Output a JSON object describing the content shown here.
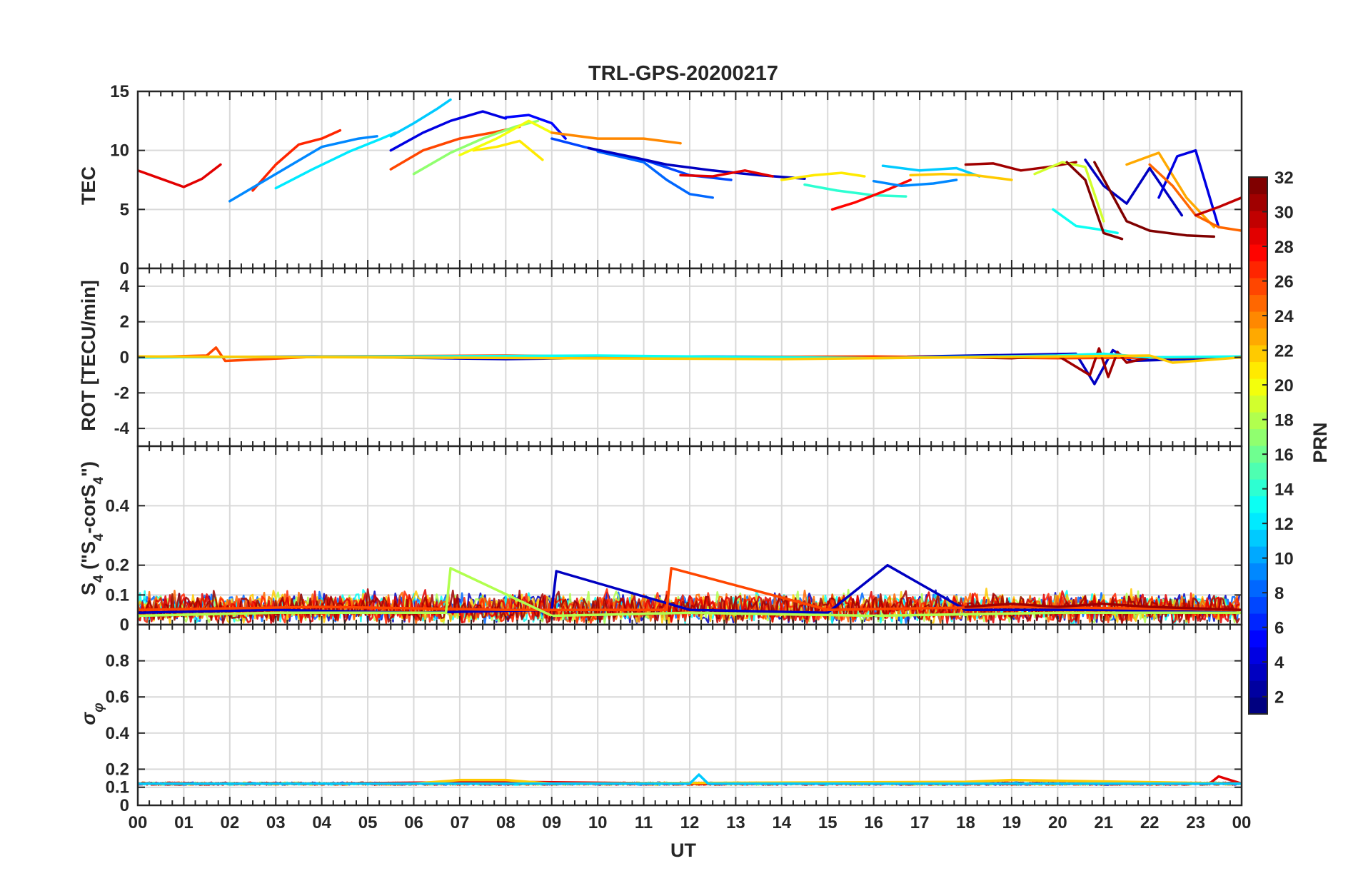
{
  "chart_data": {
    "type": "line",
    "title": "TRL-GPS-20200217",
    "xlabel": "UT",
    "x_tick_labels": [
      "00",
      "01",
      "02",
      "03",
      "04",
      "05",
      "06",
      "07",
      "08",
      "09",
      "10",
      "11",
      "12",
      "13",
      "14",
      "15",
      "16",
      "17",
      "18",
      "19",
      "20",
      "21",
      "22",
      "23",
      "00"
    ],
    "xlim_hours": [
      0,
      24
    ],
    "colorbar": {
      "label": "PRN",
      "range": [
        1,
        32
      ],
      "tick_labels": [
        "2",
        "4",
        "6",
        "8",
        "10",
        "12",
        "14",
        "16",
        "18",
        "20",
        "22",
        "24",
        "26",
        "28",
        "30",
        "32"
      ],
      "colormap": "jet"
    },
    "panels": [
      {
        "id": "tec",
        "ylabel": "TEC",
        "ylim": [
          0,
          15
        ],
        "y_tick_labels": [
          "0",
          "5",
          "10",
          "15"
        ],
        "series": [
          {
            "name": "PRN 29",
            "prn": 29,
            "x": [
              0.0,
              0.5,
              1.0,
              1.4,
              1.8
            ],
            "y": [
              8.3,
              7.6,
              6.9,
              7.6,
              8.8
            ]
          },
          {
            "name": "PRN 27",
            "prn": 27,
            "x": [
              2.5,
              3.0,
              3.5,
              4.0,
              4.4
            ],
            "y": [
              6.6,
              8.8,
              10.5,
              11.0,
              11.7
            ]
          },
          {
            "name": "PRN 9",
            "prn": 9,
            "x": [
              2.0,
              3.0,
              4.0,
              4.8,
              5.2
            ],
            "y": [
              5.7,
              8.0,
              10.3,
              11.0,
              11.2
            ]
          },
          {
            "name": "PRN 12",
            "prn": 12,
            "x": [
              3.0,
              3.8,
              4.6,
              5.3,
              5.6
            ],
            "y": [
              6.8,
              8.4,
              9.9,
              11.0,
              11.5
            ]
          },
          {
            "name": "PRN 11",
            "prn": 11,
            "x": [
              5.5,
              6.0,
              6.5,
              6.8
            ],
            "y": [
              11.2,
              12.3,
              13.5,
              14.3
            ]
          },
          {
            "name": "PRN 4",
            "prn": 4,
            "x": [
              5.5,
              6.2,
              6.8,
              7.5,
              8.0
            ],
            "y": [
              10.0,
              11.5,
              12.5,
              13.3,
              12.7
            ]
          },
          {
            "name": "PRN 26",
            "prn": 26,
            "x": [
              5.5,
              6.2,
              7.0,
              7.7,
              8.3
            ],
            "y": [
              8.4,
              10.0,
              11.0,
              11.5,
              12.0
            ]
          },
          {
            "name": "PRN 17",
            "prn": 17,
            "x": [
              6.0,
              6.8,
              7.5,
              8.2,
              8.7
            ],
            "y": [
              8.0,
              9.8,
              11.0,
              12.0,
              12.5
            ]
          },
          {
            "name": "PRN 21",
            "prn": 21,
            "x": [
              7.3,
              7.8,
              8.3,
              8.8
            ],
            "y": [
              10.0,
              10.3,
              10.8,
              9.2
            ]
          },
          {
            "name": "PRN 20",
            "prn": 20,
            "x": [
              7.0,
              7.8,
              8.5,
              9.0
            ],
            "y": [
              9.6,
              11.0,
              12.5,
              11.5
            ]
          },
          {
            "name": "PRN 5",
            "prn": 5,
            "x": [
              8.0,
              8.5,
              9.0,
              9.3
            ],
            "y": [
              12.8,
              13.0,
              12.3,
              11.0
            ]
          },
          {
            "name": "PRN 24",
            "prn": 24,
            "x": [
              9.0,
              10.0,
              11.0,
              11.8
            ],
            "y": [
              11.5,
              11.0,
              11.0,
              10.6
            ]
          },
          {
            "name": "PRN 7",
            "prn": 7,
            "x": [
              9.0,
              10.0,
              11.0,
              12.0,
              12.9
            ],
            "y": [
              11.0,
              10.0,
              9.2,
              7.9,
              7.5
            ]
          },
          {
            "name": "PRN 8",
            "prn": 8,
            "x": [
              10.0,
              11.0,
              11.5,
              12.0,
              12.5
            ],
            "y": [
              9.9,
              9.0,
              7.5,
              6.3,
              6.0
            ]
          },
          {
            "name": "PRN 3",
            "prn": 3,
            "x": [
              9.8,
              10.8,
              11.5,
              12.5,
              13.5,
              14.5
            ],
            "y": [
              10.2,
              9.4,
              8.8,
              8.3,
              7.9,
              7.6
            ]
          },
          {
            "name": "PRN 29",
            "prn": 29,
            "x": [
              11.8,
              12.5,
              13.2,
              13.8
            ],
            "y": [
              7.9,
              7.8,
              8.3,
              7.8
            ]
          },
          {
            "name": "PRN 21",
            "prn": 21,
            "x": [
              14.0,
              14.7,
              15.3,
              15.8
            ],
            "y": [
              7.5,
              7.9,
              8.1,
              7.8
            ]
          },
          {
            "name": "PRN 14",
            "prn": 14,
            "x": [
              14.5,
              15.2,
              16.0,
              16.7
            ],
            "y": [
              7.1,
              6.6,
              6.2,
              6.1
            ]
          },
          {
            "name": "PRN 28",
            "prn": 28,
            "x": [
              15.1,
              15.6,
              16.2,
              16.8
            ],
            "y": [
              5.0,
              5.6,
              6.5,
              7.5
            ]
          },
          {
            "name": "PRN 9",
            "prn": 9,
            "x": [
              16.0,
              16.6,
              17.3,
              17.8
            ],
            "y": [
              7.4,
              7.0,
              7.2,
              7.5
            ]
          },
          {
            "name": "PRN 11",
            "prn": 11,
            "x": [
              16.2,
              17.0,
              17.8,
              18.3
            ],
            "y": [
              8.7,
              8.3,
              8.5,
              7.8
            ]
          },
          {
            "name": "PRN 22",
            "prn": 22,
            "x": [
              16.8,
              17.5,
              18.2,
              19.0
            ],
            "y": [
              7.9,
              8.0,
              7.9,
              7.5
            ]
          },
          {
            "name": "PRN 31",
            "prn": 31,
            "x": [
              18.0,
              18.6,
              19.2,
              19.8,
              20.4
            ],
            "y": [
              8.8,
              8.9,
              8.3,
              8.6,
              9.0
            ]
          },
          {
            "name": "PRN 19",
            "prn": 19,
            "x": [
              19.5,
              20.1,
              20.6,
              21.0
            ],
            "y": [
              8.0,
              9.0,
              8.6,
              4.0
            ]
          },
          {
            "name": "PRN 13",
            "prn": 13,
            "x": [
              19.9,
              20.4,
              20.9,
              21.3
            ],
            "y": [
              5.0,
              3.6,
              3.3,
              3.0
            ]
          },
          {
            "name": "PRN 32",
            "prn": 32,
            "x": [
              20.2,
              20.6,
              21.0,
              21.4
            ],
            "y": [
              9.0,
              7.5,
              3.0,
              2.5
            ]
          },
          {
            "name": "PRN 3",
            "prn": 3,
            "x": [
              20.6,
              21.0,
              21.5,
              22.0,
              22.7
            ],
            "y": [
              9.2,
              7.0,
              5.5,
              8.5,
              4.5
            ]
          },
          {
            "name": "PRN 32",
            "prn": 32,
            "x": [
              20.8,
              21.5,
              22.0,
              22.8,
              23.4
            ],
            "y": [
              9.0,
              4.0,
              3.2,
              2.8,
              2.7
            ]
          },
          {
            "name": "PRN 23",
            "prn": 23,
            "x": [
              21.5,
              22.2,
              22.8,
              23.4
            ],
            "y": [
              8.8,
              9.8,
              6.0,
              3.5
            ]
          },
          {
            "name": "PRN 4",
            "prn": 4,
            "x": [
              22.2,
              22.6,
              23.0,
              23.5
            ],
            "y": [
              6.0,
              9.5,
              10.0,
              3.5
            ]
          },
          {
            "name": "PRN 25",
            "prn": 25,
            "x": [
              22.0,
              22.5,
              23.0,
              23.5,
              24.0
            ],
            "y": [
              8.8,
              7.0,
              4.5,
              3.5,
              3.2
            ]
          },
          {
            "name": "PRN 30",
            "prn": 30,
            "x": [
              23.0,
              23.5,
              24.0
            ],
            "y": [
              4.5,
              5.2,
              6.0
            ]
          }
        ]
      },
      {
        "id": "rot",
        "ylabel": "ROT [TECU/min]",
        "ylim": [
          -5,
          5
        ],
        "y_tick_labels": [
          "-4",
          "-2",
          "0",
          "2",
          "4"
        ],
        "series": [
          {
            "name": "PRN 3",
            "prn": 3,
            "x": [
              0,
              4,
              8,
              12,
              16,
              20.4,
              20.8,
              21.2,
              21.6,
              24
            ],
            "y": [
              0,
              0.05,
              -0.1,
              0.05,
              0,
              0.2,
              -1.5,
              0.4,
              -0.2,
              0
            ]
          },
          {
            "name": "PRN 26",
            "prn": 26,
            "x": [
              0,
              1.5,
              1.7,
              1.9,
              4,
              8,
              12,
              16,
              20,
              24
            ],
            "y": [
              0,
              0.1,
              0.55,
              -0.2,
              0.05,
              0.1,
              0,
              0.05,
              -0.05,
              0
            ]
          },
          {
            "name": "PRN 31",
            "prn": 31,
            "x": [
              18,
              19,
              20,
              20.7,
              20.9,
              21.1,
              21.3,
              21.5,
              22,
              24
            ],
            "y": [
              0,
              -0.05,
              0.1,
              -1.0,
              0.5,
              -1.1,
              0.3,
              -0.3,
              0,
              0
            ]
          },
          {
            "name": "PRN 13",
            "prn": 13,
            "x": [
              0,
              6,
              10,
              16,
              20,
              21,
              22,
              24
            ],
            "y": [
              0,
              0.05,
              0.1,
              -0.05,
              0.1,
              0.2,
              0,
              0.05
            ]
          },
          {
            "name": "PRN 22",
            "prn": 22,
            "x": [
              0,
              5,
              9,
              14,
              18,
              22,
              22.5,
              24
            ],
            "y": [
              0.05,
              0,
              -0.05,
              -0.1,
              0,
              0.1,
              -0.3,
              0
            ]
          }
        ]
      },
      {
        "id": "s4",
        "ylabel": "S4 (\"S4-corS4\")",
        "ylim": [
          0,
          0.6
        ],
        "y_tick_labels": [
          "0",
          "0.1",
          "0.2",
          "0.4"
        ],
        "series": [
          {
            "name": "PRN 3",
            "prn": 3,
            "x": [
              0,
              3,
              6,
              9,
              9.1,
              12,
              15,
              16.3,
              18,
              21,
              24
            ],
            "y": [
              0.04,
              0.05,
              0.04,
              0.05,
              0.18,
              0.05,
              0.04,
              0.2,
              0.05,
              0.05,
              0.04
            ]
          },
          {
            "name": "PRN 26",
            "prn": 26,
            "x": [
              0,
              4,
              8,
              11.5,
              11.6,
              15,
              19,
              24
            ],
            "y": [
              0.05,
              0.06,
              0.05,
              0.05,
              0.19,
              0.05,
              0.06,
              0.05
            ]
          },
          {
            "name": "PRN 31",
            "prn": 31,
            "x": [
              18,
              19,
              20,
              21,
              22,
              24
            ],
            "y": [
              0.06,
              0.07,
              0.06,
              0.07,
              0.06,
              0.05
            ]
          },
          {
            "name": "PRN 18",
            "prn": 18,
            "x": [
              0,
              3,
              6.7,
              6.8,
              9,
              12,
              16,
              20,
              24
            ],
            "y": [
              0.03,
              0.04,
              0.04,
              0.19,
              0.03,
              0.04,
              0.03,
              0.04,
              0.04
            ]
          }
        ]
      },
      {
        "id": "sigma_phi",
        "ylabel": "σφ",
        "ylim": [
          0,
          1
        ],
        "y_tick_labels": [
          "0",
          "0.1",
          "0.2",
          "0.4",
          "0.6",
          "0.8"
        ],
        "series": [
          {
            "name": "PRN 29",
            "prn": 29,
            "x": [
              0,
              4,
              8,
              12,
              16,
              20,
              23.3,
              23.5,
              24
            ],
            "y": [
              0.12,
              0.12,
              0.13,
              0.12,
              0.12,
              0.12,
              0.12,
              0.16,
              0.12
            ]
          },
          {
            "name": "PRN 22",
            "prn": 22,
            "x": [
              0,
              6,
              7,
              8,
              9,
              18,
              19,
              24
            ],
            "y": [
              0.12,
              0.12,
              0.14,
              0.14,
              0.12,
              0.13,
              0.14,
              0.12
            ]
          },
          {
            "name": "PRN 11",
            "prn": 11,
            "x": [
              0,
              12,
              12.2,
              12.4,
              24
            ],
            "y": [
              0.12,
              0.12,
              0.17,
              0.12,
              0.12
            ]
          }
        ]
      }
    ]
  }
}
